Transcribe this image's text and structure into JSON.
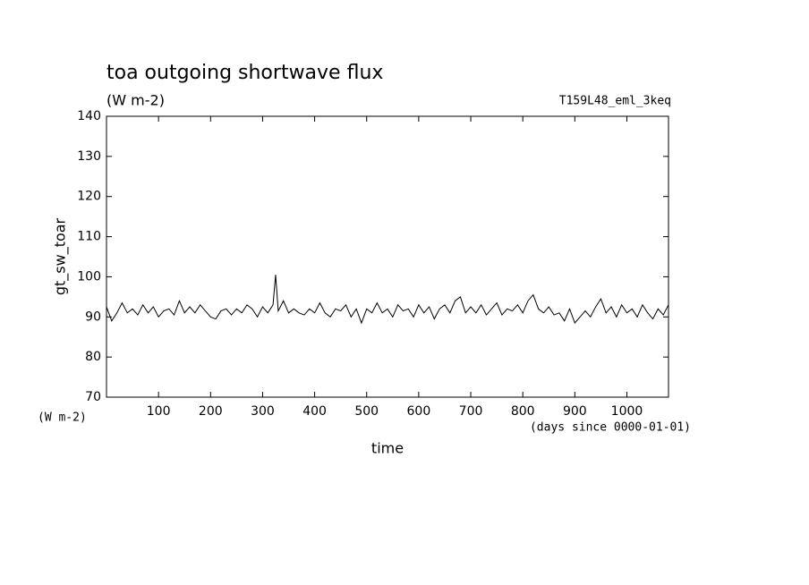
{
  "chart_data": {
    "type": "line",
    "title": "toa outgoing shortwave flux",
    "subtitle": "(W m-2)",
    "annotation": "T159L48_eml_3keq",
    "y_label": "gt_sw_toar",
    "y_units": "(W m-2)",
    "x_units": "(days since 0000-01-01)",
    "x_label": "time",
    "xlim": [
      0,
      1080
    ],
    "xticks": [
      100,
      200,
      300,
      400,
      500,
      600,
      700,
      800,
      900,
      1000
    ],
    "ylim": [
      70,
      140
    ],
    "yticks": [
      70,
      80,
      90,
      100,
      110,
      120,
      130,
      140
    ],
    "x": [
      0,
      10,
      20,
      30,
      40,
      50,
      60,
      70,
      80,
      90,
      100,
      110,
      120,
      130,
      140,
      150,
      160,
      170,
      180,
      190,
      200,
      210,
      220,
      230,
      240,
      250,
      260,
      270,
      280,
      290,
      300,
      310,
      320,
      325,
      330,
      340,
      350,
      360,
      370,
      380,
      390,
      400,
      410,
      420,
      430,
      440,
      450,
      460,
      470,
      480,
      490,
      500,
      510,
      520,
      530,
      540,
      550,
      560,
      570,
      580,
      590,
      600,
      610,
      620,
      630,
      640,
      650,
      660,
      670,
      680,
      690,
      700,
      710,
      720,
      730,
      740,
      750,
      760,
      770,
      780,
      790,
      800,
      810,
      820,
      830,
      840,
      850,
      860,
      870,
      880,
      890,
      900,
      910,
      920,
      930,
      940,
      950,
      960,
      970,
      980,
      990,
      1000,
      1010,
      1020,
      1030,
      1040,
      1050,
      1060,
      1070,
      1080
    ],
    "series": [
      {
        "name": "gt_sw_toar",
        "color": "#000000",
        "values": [
          92.5,
          89,
          91,
          93.5,
          91,
          92,
          90.5,
          93,
          91,
          92.5,
          90,
          91.5,
          92,
          90.5,
          94,
          91,
          92.5,
          91,
          93,
          91.5,
          90,
          89.5,
          91.5,
          92,
          90.5,
          92,
          91,
          93,
          92,
          90,
          92.5,
          91,
          93,
          100.5,
          91.5,
          94,
          91,
          92,
          91,
          90.5,
          92,
          91,
          93.5,
          91,
          90,
          92,
          91.5,
          93,
          90,
          92,
          88.5,
          92,
          91,
          93.5,
          91,
          92,
          90,
          93,
          91.5,
          92,
          90,
          93,
          91,
          92.5,
          89.5,
          92,
          93,
          91,
          94,
          95,
          91,
          92.5,
          91,
          93,
          90.5,
          92,
          93.5,
          90.5,
          92,
          91.5,
          93,
          91,
          94,
          95.5,
          92,
          91,
          92.5,
          90.5,
          91,
          89,
          92,
          88.5,
          90,
          91.5,
          90,
          92.5,
          94.5,
          91,
          92.5,
          90,
          93,
          91,
          92,
          90,
          93,
          91,
          89.5,
          92,
          90.5,
          93
        ]
      }
    ]
  }
}
